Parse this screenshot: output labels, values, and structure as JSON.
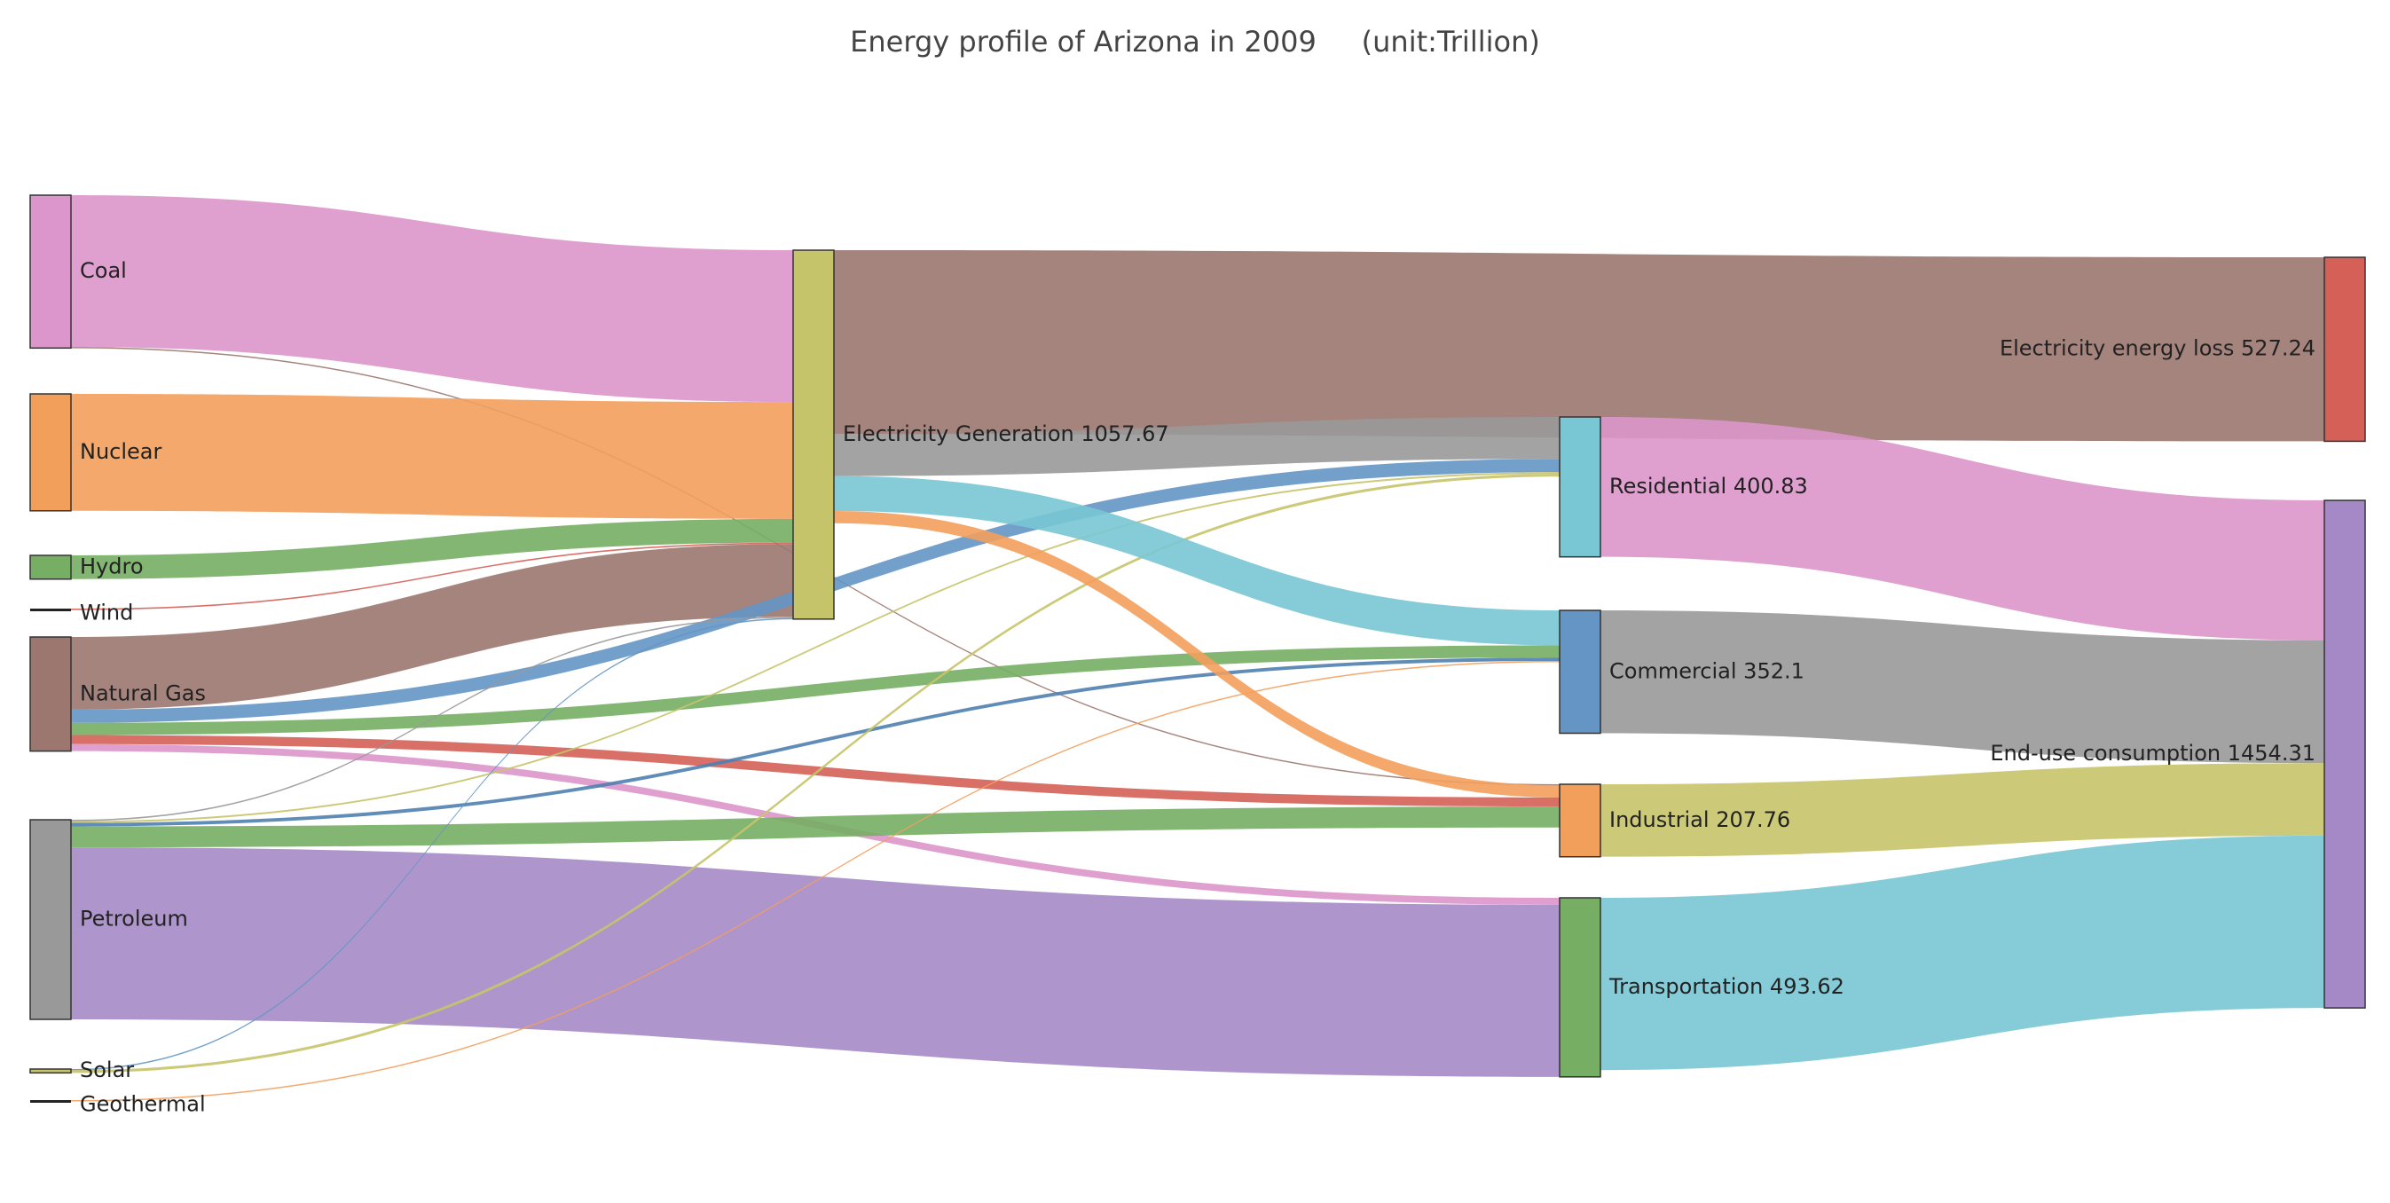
{
  "chart_data": {
    "type": "sankey",
    "title": "Energy profile of Arizona in 2009     (unit:Trillion)",
    "nodes": [
      {
        "id": "coal",
        "label": "Coal",
        "color": "#dc96cb"
      },
      {
        "id": "nuclear",
        "label": "Nuclear",
        "color": "#f39f5c"
      },
      {
        "id": "hydro",
        "label": "Hydro",
        "color": "#76ae63"
      },
      {
        "id": "wind",
        "label": "Wind",
        "color": "#d46058"
      },
      {
        "id": "gas",
        "label": "Natural Gas",
        "color": "#9b776f"
      },
      {
        "id": "petroleum",
        "label": "Petroleum",
        "color": "#999999"
      },
      {
        "id": "solar",
        "label": "Solar",
        "color": "#c6c46a"
      },
      {
        "id": "geothermal",
        "label": "Geothermal",
        "color": "#f39f5c"
      },
      {
        "id": "elec",
        "label": "Electricity Generation 1057.67",
        "color": "#c6c46a"
      },
      {
        "id": "residential",
        "label": "Residential 400.83",
        "color": "#79c6d4"
      },
      {
        "id": "commercial",
        "label": "Commercial 352.1",
        "color": "#6495c5"
      },
      {
        "id": "industrial",
        "label": "Industrial 207.76",
        "color": "#f39f5c"
      },
      {
        "id": "transport",
        "label": "Transportation 493.62",
        "color": "#76ae63"
      },
      {
        "id": "loss",
        "label": "Electricity energy loss 527.24",
        "color": "#d46058"
      },
      {
        "id": "enduse",
        "label": "End-use consumption 1454.31",
        "color": "#a589c6"
      }
    ],
    "links": [
      {
        "source": "coal",
        "target": "elec",
        "value": 435.0,
        "color": "#dc96cb"
      },
      {
        "source": "coal",
        "target": "industrial",
        "value": 3.0,
        "color": "#9b776f"
      },
      {
        "source": "nuclear",
        "target": "elec",
        "value": 335.0,
        "color": "#f39f5c"
      },
      {
        "source": "hydro",
        "target": "elec",
        "value": 68.0,
        "color": "#76ae63"
      },
      {
        "source": "wind",
        "target": "elec",
        "value": 4.0,
        "color": "#d46058"
      },
      {
        "source": "gas",
        "target": "elec",
        "value": 208.0,
        "color": "#9b776f"
      },
      {
        "source": "gas",
        "target": "residential",
        "value": 38.0,
        "color": "#6495c5"
      },
      {
        "source": "gas",
        "target": "commercial",
        "value": 35.0,
        "color": "#76ae63"
      },
      {
        "source": "gas",
        "target": "industrial",
        "value": 26.0,
        "color": "#d46058"
      },
      {
        "source": "gas",
        "target": "transport",
        "value": 20.0,
        "color": "#dc96cb"
      },
      {
        "source": "petroleum",
        "target": "elec",
        "value": 4.0,
        "color": "#999999"
      },
      {
        "source": "petroleum",
        "target": "residential",
        "value": 5.0,
        "color": "#c6c46a"
      },
      {
        "source": "petroleum",
        "target": "commercial",
        "value": 10.0,
        "color": "#4f7fb0"
      },
      {
        "source": "petroleum",
        "target": "industrial",
        "value": 60.0,
        "color": "#76ae63"
      },
      {
        "source": "petroleum",
        "target": "transport",
        "value": 493.0,
        "color": "#a589c6"
      },
      {
        "source": "solar",
        "target": "elec",
        "value": 3.0,
        "color": "#6495c5"
      },
      {
        "source": "solar",
        "target": "residential",
        "value": 8.0,
        "color": "#c6c46a"
      },
      {
        "source": "geothermal",
        "target": "commercial",
        "value": 3.0,
        "color": "#f39f5c"
      },
      {
        "source": "elec",
        "target": "loss",
        "value": 527.24,
        "color": "#9b776f"
      },
      {
        "source": "elec",
        "target": "residential",
        "value": 120.0,
        "color": "#999999"
      },
      {
        "source": "elec",
        "target": "commercial",
        "value": 100.0,
        "color": "#79c6d4"
      },
      {
        "source": "elec",
        "target": "industrial",
        "value": 35.0,
        "color": "#f39f5c"
      },
      {
        "source": "residential",
        "target": "enduse",
        "value": 400.83,
        "color": "#dc96cb"
      },
      {
        "source": "commercial",
        "target": "enduse",
        "value": 352.1,
        "color": "#999999"
      },
      {
        "source": "industrial",
        "target": "enduse",
        "value": 207.76,
        "color": "#c6c46a"
      },
      {
        "source": "transport",
        "target": "enduse",
        "value": 493.62,
        "color": "#79c6d4"
      }
    ]
  }
}
